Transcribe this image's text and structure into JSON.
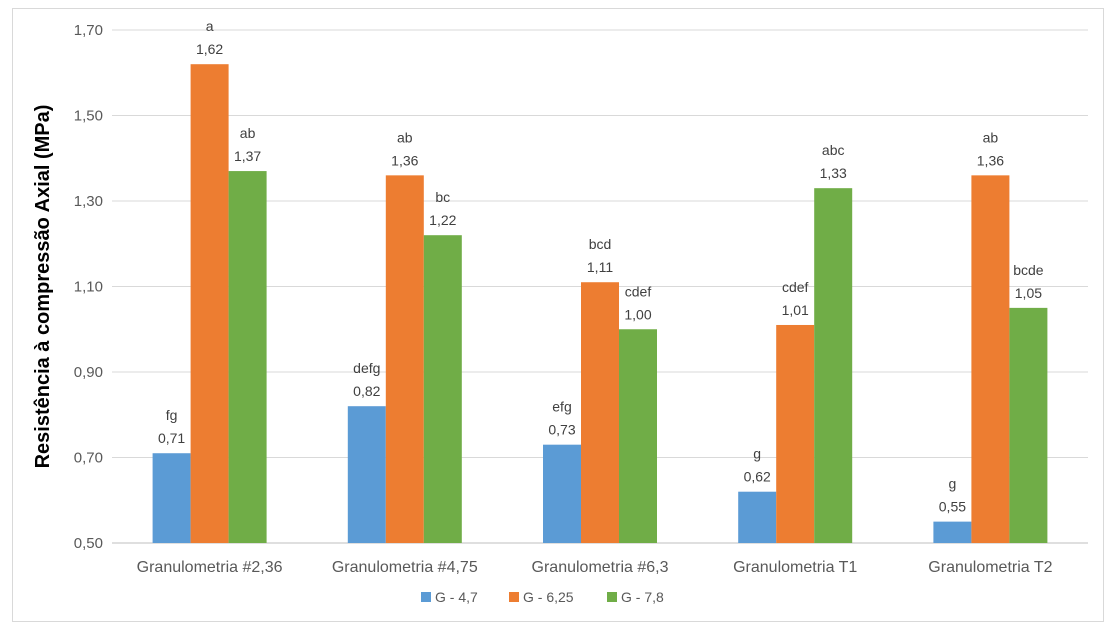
{
  "chart_data": {
    "type": "bar",
    "title": "",
    "xlabel": "",
    "ylabel": "Resistência à compressão Axial (MPa)",
    "ylim": [
      0.5,
      1.7
    ],
    "yticks": [
      "0,50",
      "0,70",
      "0,90",
      "1,10",
      "1,30",
      "1,50",
      "1,70"
    ],
    "grid": true,
    "legend_position": "bottom",
    "categories": [
      "Granulometria #2,36",
      "Granulometria #4,75",
      "Granulometria #6,3",
      "Granulometria T1",
      "Granulometria T2"
    ],
    "series": [
      {
        "name": "G - 4,7",
        "color": "#5b9bd5",
        "values": [
          0.71,
          0.82,
          0.73,
          0.62,
          0.55
        ],
        "value_labels": [
          "0,71",
          "0,82",
          "0,73",
          "0,62",
          "0,55"
        ],
        "letters": [
          "fg",
          "defg",
          "efg",
          "g",
          "g"
        ]
      },
      {
        "name": "G - 6,25",
        "color": "#ed7d31",
        "values": [
          1.62,
          1.36,
          1.11,
          1.01,
          1.36
        ],
        "value_labels": [
          "1,62",
          "1,36",
          "1,11",
          "1,01",
          "1,36"
        ],
        "letters": [
          "a",
          "ab",
          "bcd",
          "cdef",
          "ab"
        ]
      },
      {
        "name": "G - 7,8",
        "color": "#70ad47",
        "values": [
          1.37,
          1.22,
          1.0,
          1.33,
          1.05
        ],
        "value_labels": [
          "1,37",
          "1,22",
          "1,00",
          "1,33",
          "1,05"
        ],
        "letters": [
          "ab",
          "bc",
          "cdef",
          "abc",
          "bcde"
        ]
      }
    ]
  }
}
